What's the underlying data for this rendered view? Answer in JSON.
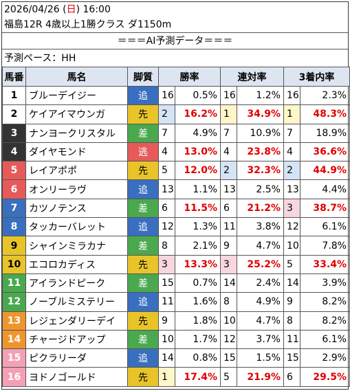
{
  "header": {
    "date": "2026/04/26 (",
    "weekday": "日",
    "time_suffix": ") 16:00",
    "race": "福島12R 4歳以上1勝クラス ダ1150m"
  },
  "ai_title": "＝＝＝AI予測データ＝＝＝",
  "pace": "予測ペース：HH",
  "columns": {
    "umaban": "馬番",
    "name": "馬名",
    "kyakushitsu": "脚質",
    "win": "勝率",
    "rentai": "連対率",
    "fukusho": "3着内率"
  },
  "colors": {
    "header_bg": "#dde6f0",
    "red_text": "#e00000",
    "nige": "#e65a5a",
    "senko": "#e8c42a",
    "sashi": "#4aa84f",
    "oikomi": "#3a6fbf",
    "rank1_bg": "#fff7c8",
    "rank2_bg": "#d4e4f7",
    "rank3_bg": "#f8d6de"
  },
  "horses": [
    {
      "num": "1",
      "num_bg": "#ffffff",
      "num_fg": "#000000",
      "name": "ブルーデイジー",
      "kyaku": "追",
      "kyaku_bg": "#3a6fbf",
      "kyaku_fg": "#ffffff",
      "w_rank": "16",
      "w_pct": "0.5%",
      "r_rank": "16",
      "r_pct": "1.2%",
      "f_rank": "16",
      "f_pct": "2.3%"
    },
    {
      "num": "2",
      "num_bg": "#ffffff",
      "num_fg": "#000000",
      "name": "ケイアイマウンガ",
      "kyaku": "先",
      "kyaku_bg": "#e8c42a",
      "kyaku_fg": "#000000",
      "w_rank": "2",
      "w_pct": "16.2%",
      "r_rank": "1",
      "r_pct": "34.9%",
      "f_rank": "1",
      "f_pct": "48.3%"
    },
    {
      "num": "3",
      "num_bg": "#333333",
      "num_fg": "#ffffff",
      "name": "ナンヨークリスタル",
      "kyaku": "差",
      "kyaku_bg": "#4aa84f",
      "kyaku_fg": "#ffffff",
      "w_rank": "7",
      "w_pct": "4.9%",
      "r_rank": "7",
      "r_pct": "10.9%",
      "f_rank": "7",
      "f_pct": "18.9%"
    },
    {
      "num": "4",
      "num_bg": "#333333",
      "num_fg": "#ffffff",
      "name": "ダイヤモンド",
      "kyaku": "逃",
      "kyaku_bg": "#e65a5a",
      "kyaku_fg": "#ffffff",
      "w_rank": "4",
      "w_pct": "13.0%",
      "r_rank": "4",
      "r_pct": "23.8%",
      "f_rank": "4",
      "f_pct": "36.6%"
    },
    {
      "num": "5",
      "num_bg": "#e65a5a",
      "num_fg": "#ffffff",
      "name": "レイアポポ",
      "kyaku": "先",
      "kyaku_bg": "#e8c42a",
      "kyaku_fg": "#000000",
      "w_rank": "5",
      "w_pct": "12.0%",
      "r_rank": "2",
      "r_pct": "32.3%",
      "f_rank": "2",
      "f_pct": "44.9%"
    },
    {
      "num": "6",
      "num_bg": "#e65a5a",
      "num_fg": "#ffffff",
      "name": "オンリーラヴ",
      "kyaku": "追",
      "kyaku_bg": "#3a6fbf",
      "kyaku_fg": "#ffffff",
      "w_rank": "13",
      "w_pct": "1.1%",
      "r_rank": "13",
      "r_pct": "2.5%",
      "f_rank": "13",
      "f_pct": "4.4%"
    },
    {
      "num": "7",
      "num_bg": "#3a6fbf",
      "num_fg": "#ffffff",
      "name": "カツノテンス",
      "kyaku": "差",
      "kyaku_bg": "#4aa84f",
      "kyaku_fg": "#ffffff",
      "w_rank": "6",
      "w_pct": "11.5%",
      "r_rank": "6",
      "r_pct": "21.2%",
      "f_rank": "3",
      "f_pct": "38.7%"
    },
    {
      "num": "8",
      "num_bg": "#3a6fbf",
      "num_fg": "#ffffff",
      "name": "タッカーバレット",
      "kyaku": "追",
      "kyaku_bg": "#3a6fbf",
      "kyaku_fg": "#ffffff",
      "w_rank": "12",
      "w_pct": "1.3%",
      "r_rank": "11",
      "r_pct": "3.8%",
      "f_rank": "12",
      "f_pct": "6.1%"
    },
    {
      "num": "9",
      "num_bg": "#e8c42a",
      "num_fg": "#000000",
      "name": "シャインミラカナ",
      "kyaku": "差",
      "kyaku_bg": "#4aa84f",
      "kyaku_fg": "#ffffff",
      "w_rank": "8",
      "w_pct": "2.1%",
      "r_rank": "9",
      "r_pct": "4.7%",
      "f_rank": "10",
      "f_pct": "7.8%"
    },
    {
      "num": "10",
      "num_bg": "#e8c42a",
      "num_fg": "#000000",
      "name": "エコロカディス",
      "kyaku": "先",
      "kyaku_bg": "#e8c42a",
      "kyaku_fg": "#000000",
      "w_rank": "3",
      "w_pct": "13.3%",
      "r_rank": "3",
      "r_pct": "25.2%",
      "f_rank": "5",
      "f_pct": "33.4%"
    },
    {
      "num": "11",
      "num_bg": "#4aa84f",
      "num_fg": "#ffffff",
      "name": "アイランドピーク",
      "kyaku": "差",
      "kyaku_bg": "#4aa84f",
      "kyaku_fg": "#ffffff",
      "w_rank": "15",
      "w_pct": "0.7%",
      "r_rank": "14",
      "r_pct": "2.4%",
      "f_rank": "14",
      "f_pct": "3.9%"
    },
    {
      "num": "12",
      "num_bg": "#4aa84f",
      "num_fg": "#ffffff",
      "name": "ノーブルミステリー",
      "kyaku": "追",
      "kyaku_bg": "#3a6fbf",
      "kyaku_fg": "#ffffff",
      "w_rank": "11",
      "w_pct": "1.6%",
      "r_rank": "8",
      "r_pct": "4.9%",
      "f_rank": "9",
      "f_pct": "8.2%"
    },
    {
      "num": "13",
      "num_bg": "#f0952e",
      "num_fg": "#ffffff",
      "name": "レジェンダリーデイ",
      "kyaku": "先",
      "kyaku_bg": "#e8c42a",
      "kyaku_fg": "#000000",
      "w_rank": "9",
      "w_pct": "1.8%",
      "r_rank": "10",
      "r_pct": "4.7%",
      "f_rank": "8",
      "f_pct": "8.2%"
    },
    {
      "num": "14",
      "num_bg": "#f0952e",
      "num_fg": "#ffffff",
      "name": "チャージドアップ",
      "kyaku": "差",
      "kyaku_bg": "#4aa84f",
      "kyaku_fg": "#ffffff",
      "w_rank": "10",
      "w_pct": "1.7%",
      "r_rank": "12",
      "r_pct": "3.7%",
      "f_rank": "11",
      "f_pct": "6.1%"
    },
    {
      "num": "15",
      "num_bg": "#f3a0b5",
      "num_fg": "#ffffff",
      "name": "ピクラリーダ",
      "kyaku": "追",
      "kyaku_bg": "#3a6fbf",
      "kyaku_fg": "#ffffff",
      "w_rank": "14",
      "w_pct": "0.8%",
      "r_rank": "15",
      "r_pct": "1.5%",
      "f_rank": "15",
      "f_pct": "2.9%"
    },
    {
      "num": "16",
      "num_bg": "#f3a0b5",
      "num_fg": "#ffffff",
      "name": "ヨドノゴールド",
      "kyaku": "先",
      "kyaku_bg": "#e8c42a",
      "kyaku_fg": "#000000",
      "w_rank": "1",
      "w_pct": "17.4%",
      "r_rank": "5",
      "r_pct": "21.9%",
      "f_rank": "6",
      "f_pct": "29.5%"
    }
  ]
}
